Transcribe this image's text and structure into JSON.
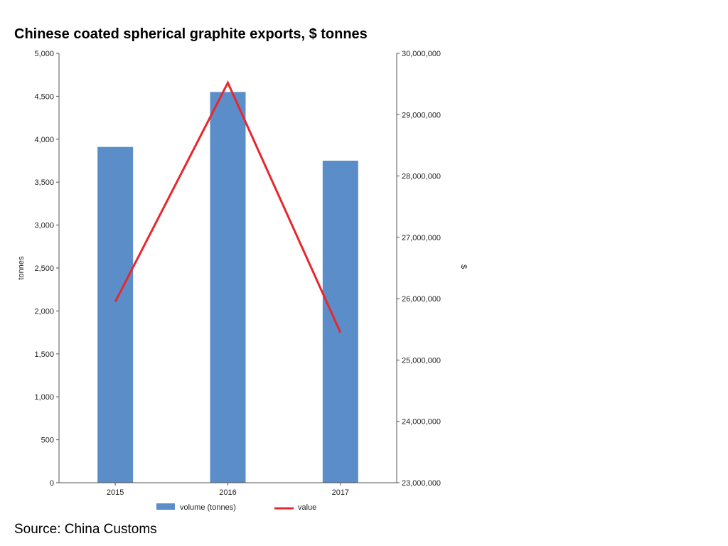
{
  "header": {
    "title": "Chinese coated spherical graphite exports, $ tonnes"
  },
  "footer": {
    "source": "Source: China Customs"
  },
  "chart_data": {
    "type": "bar",
    "categories": [
      "2015",
      "2016",
      "2017"
    ],
    "series": [
      {
        "name": "volume (tonnes)",
        "kind": "bar",
        "axis": "left",
        "color": "#5b8ec9",
        "values": [
          3910,
          4550,
          3750
        ]
      },
      {
        "name": "value",
        "kind": "line",
        "axis": "right",
        "color": "#e8262d",
        "values": [
          25950000,
          29520000,
          25450000
        ]
      }
    ],
    "ylabel": "tonnes",
    "ylabel_right": "$",
    "ylim": [
      0,
      5000
    ],
    "ylim_right": [
      23000000,
      30000000
    ],
    "yticks_left": [
      "0",
      "500",
      "1,000",
      "1,500",
      "2,000",
      "2,500",
      "3,000",
      "3,500",
      "4,000",
      "4,500",
      "5,000"
    ],
    "yticks_right": [
      "23,000,000",
      "24,000,000",
      "25,000,000",
      "26,000,000",
      "27,000,000",
      "28,000,000",
      "29,000,000",
      "30,000,000"
    ],
    "legend_position": "bottom",
    "grid": false
  }
}
